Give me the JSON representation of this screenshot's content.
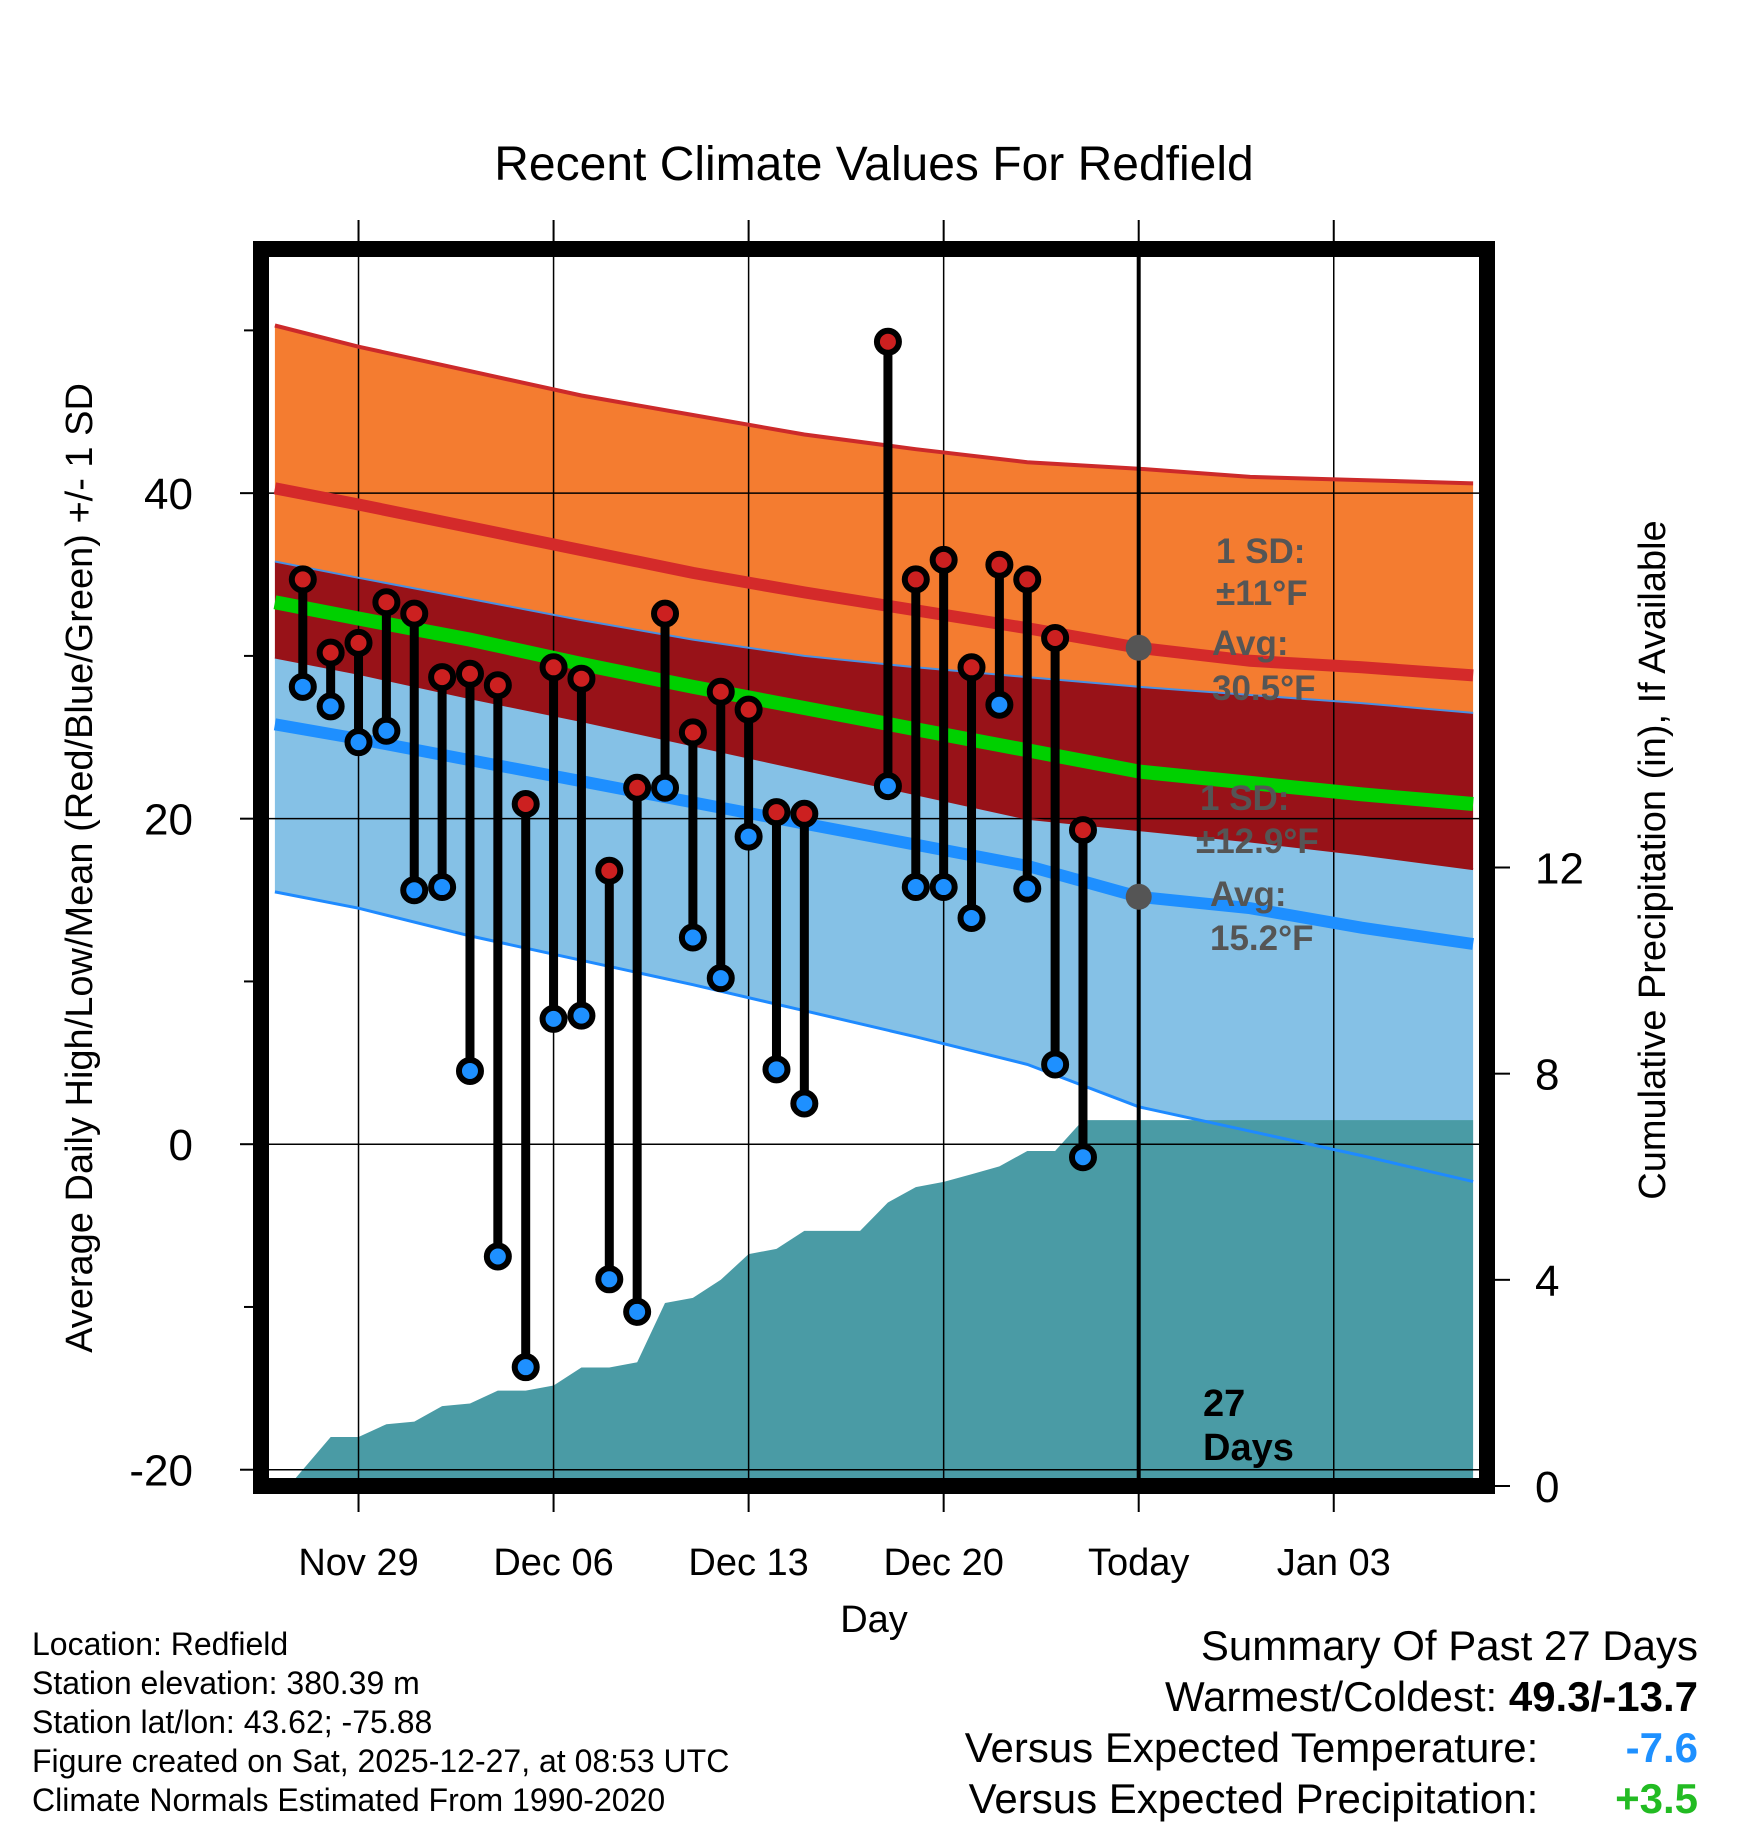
{
  "chart_data": {
    "type": "line",
    "title": "Recent Climate Values For Redfield",
    "xlabel": "Day",
    "ylabel": "Average Daily High/Low/Mean (Red/Blue/Green) +/- 1 SD",
    "y2label": "Cumulative Precipitation (in), If Available",
    "xlim": [
      -3.5,
      40.5
    ],
    "ylim": [
      -21,
      55
    ],
    "y2lim": [
      0,
      24
    ],
    "x_ticks": [
      0,
      7,
      14,
      21,
      28,
      35
    ],
    "x_tick_labels": [
      "Nov 29",
      "Dec 06",
      "Dec 13",
      "Dec 20",
      "Today",
      "Jan 03"
    ],
    "y_ticks": [
      -20,
      0,
      20,
      40
    ],
    "y_tick_labels": [
      "-20",
      "0",
      "20",
      "40"
    ],
    "y2_ticks": [
      0,
      4,
      8,
      12
    ],
    "y2_tick_labels": [
      "0",
      "4",
      "8",
      "12"
    ],
    "today_x": 28,
    "today_label": [
      "27",
      "Days"
    ],
    "normals": {
      "x": [
        -3,
        0,
        4,
        8,
        12,
        16,
        20,
        24,
        28,
        32,
        36,
        40
      ],
      "high_mean": [
        40.3,
        39.3,
        37.9,
        36.5,
        35.1,
        33.9,
        32.8,
        31.7,
        30.5,
        29.7,
        29.3,
        28.8
      ],
      "high_upper": [
        50.3,
        49.0,
        47.5,
        46.0,
        44.8,
        43.6,
        42.7,
        41.9,
        41.5,
        41.0,
        40.8,
        40.6
      ],
      "high_lower": [
        35.8,
        34.8,
        33.5,
        32.2,
        31.0,
        30.0,
        29.3,
        28.7,
        28.1,
        27.6,
        27.1,
        26.5
      ],
      "mean": [
        33.3,
        32.3,
        31.0,
        29.5,
        28.1,
        26.8,
        25.5,
        24.2,
        22.9,
        22.2,
        21.5,
        20.9
      ],
      "low_mean": [
        25.8,
        24.9,
        23.6,
        22.3,
        21.0,
        19.7,
        18.4,
        17.1,
        15.2,
        14.5,
        13.3,
        12.3
      ],
      "low_upper": [
        29.9,
        28.9,
        27.4,
        26.0,
        24.5,
        23.0,
        21.5,
        20.0,
        19.3,
        18.6,
        17.8,
        16.9
      ],
      "low_lower": [
        15.5,
        14.5,
        12.8,
        11.3,
        9.8,
        8.2,
        6.6,
        4.9,
        2.3,
        0.8,
        -0.7,
        -2.3
      ]
    },
    "series": [
      {
        "name": "Daily High",
        "color": "#cc2020",
        "x": [
          -2,
          -1,
          0,
          1,
          2,
          3,
          4,
          5,
          6,
          7,
          8,
          9,
          10,
          11,
          12,
          13,
          14,
          15,
          16,
          19,
          20,
          21,
          22,
          23,
          24,
          25,
          26
        ],
        "values": [
          34.7,
          30.2,
          30.8,
          33.3,
          32.6,
          28.7,
          28.9,
          28.2,
          20.9,
          29.3,
          28.6,
          16.8,
          21.9,
          32.6,
          25.3,
          27.8,
          26.7,
          20.4,
          20.3,
          49.3,
          34.7,
          35.9,
          29.3,
          35.6,
          34.7,
          31.1,
          19.3
        ]
      },
      {
        "name": "Daily Low",
        "color": "#1e90ff",
        "x": [
          -2,
          -1,
          0,
          1,
          2,
          3,
          4,
          5,
          6,
          7,
          8,
          9,
          10,
          11,
          12,
          13,
          14,
          15,
          16,
          19,
          20,
          21,
          22,
          23,
          24,
          25,
          26
        ],
        "values": [
          28.1,
          26.9,
          24.7,
          25.4,
          15.6,
          15.8,
          4.5,
          -6.9,
          -13.7,
          7.7,
          7.9,
          -8.3,
          -10.3,
          21.9,
          12.7,
          10.2,
          18.9,
          4.6,
          2.5,
          22.0,
          15.8,
          15.8,
          13.9,
          27.0,
          15.7,
          4.9,
          -0.8
        ]
      },
      {
        "name": "Cumulative Precipitation",
        "color": "#4a9ba5",
        "x": [
          -2.5,
          -1,
          0,
          1,
          2,
          3,
          4,
          5,
          6,
          7,
          8,
          9,
          10,
          11,
          12,
          13,
          14,
          15,
          16,
          17,
          18,
          19,
          20,
          21,
          22,
          23,
          24,
          25,
          26,
          27,
          40
        ],
        "values": [
          0.0,
          0.95,
          0.95,
          1.2,
          1.25,
          1.55,
          1.6,
          1.85,
          1.85,
          1.95,
          2.3,
          2.3,
          2.4,
          3.55,
          3.65,
          4.0,
          4.5,
          4.6,
          4.95,
          4.95,
          4.95,
          5.5,
          5.8,
          5.9,
          6.05,
          6.2,
          6.5,
          6.5,
          7.1,
          7.1,
          7.1
        ]
      }
    ],
    "annotations": {
      "high": {
        "sd_title": "1 SD:",
        "sd_value": "±11°F",
        "avg_title": "Avg:",
        "avg_value": "30.5°F",
        "avg": 30.5
      },
      "low": {
        "sd_title": "1 SD:",
        "sd_value": "±12.9°F",
        "avg_title": "Avg:",
        "avg_value": "15.2°F",
        "avg": 15.2
      }
    }
  },
  "station_info": {
    "location": "Location: Redfield",
    "elevation": "Station elevation: 380.39 m",
    "latlon": "Station lat/lon: 43.62; -75.88",
    "created": "Figure created on Sat, 2025-12-27, at 08:53 UTC",
    "normals": "Climate Normals Estimated From 1990-2020"
  },
  "summary": {
    "title": "Summary Of Past 27 Days",
    "warm_cold_label": "Warmest/Coldest:",
    "warm_cold_value": "49.3/-13.7",
    "temp_label": "Versus Expected Temperature:",
    "temp_value": "-7.6",
    "temp_color": "#1e90ff",
    "precip_label": "Versus Expected Precipitation:",
    "precip_value": "+3.5",
    "precip_color": "#22bb22"
  }
}
